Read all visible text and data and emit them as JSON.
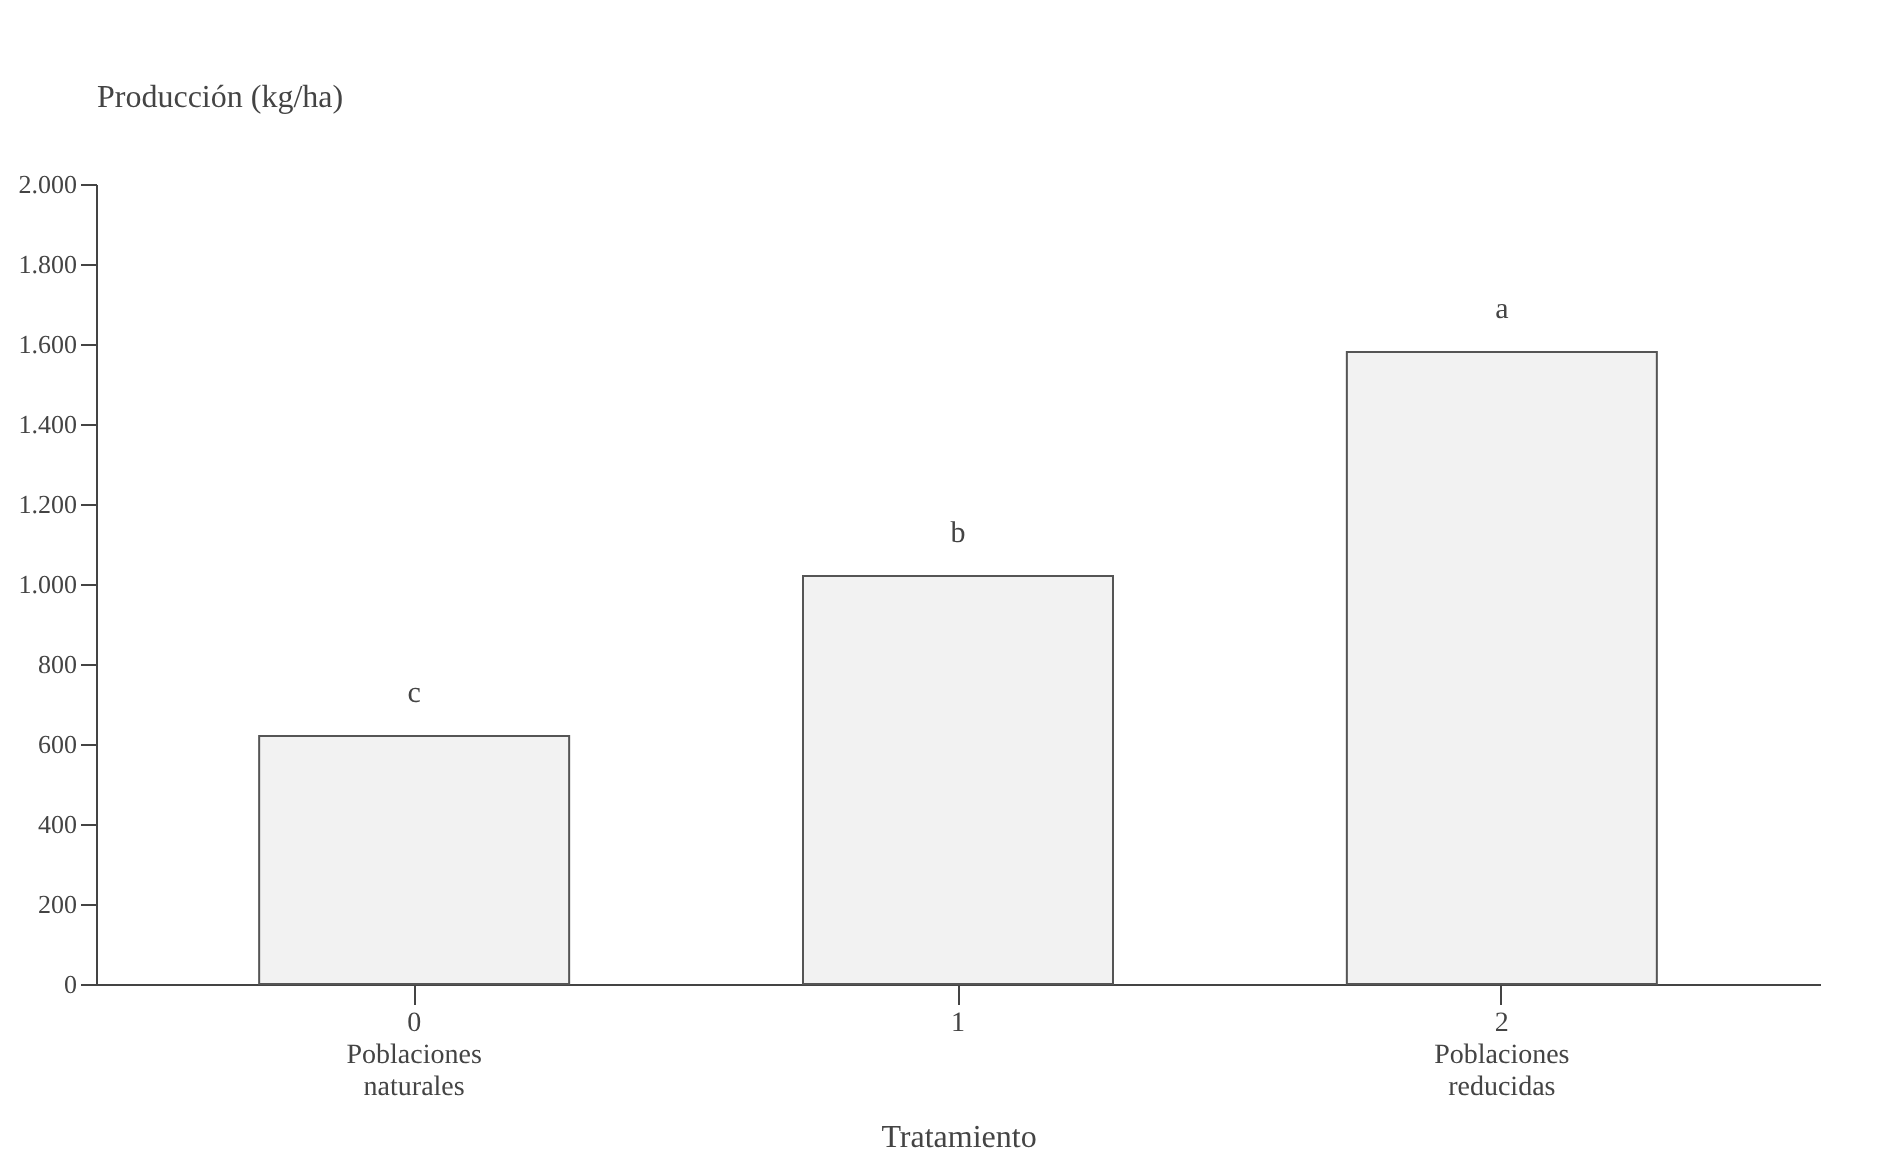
{
  "chart_data": {
    "type": "bar",
    "ylabel": "Producción (kg/ha)",
    "xlabel": "Tratamiento",
    "categories": [
      "0 Poblaciones naturales",
      "1",
      "2 Poblaciones reducidas"
    ],
    "values": [
      620,
      1020,
      1580
    ],
    "color": "#f2f2f2",
    "ylim": [
      0,
      2000
    ],
    "yticks": [
      {
        "value": 0,
        "label": "0"
      },
      {
        "value": 200,
        "label": "200"
      },
      {
        "value": 400,
        "label": "400"
      },
      {
        "value": 600,
        "label": "600"
      },
      {
        "value": 800,
        "label": "800"
      },
      {
        "value": 1000,
        "label": "1.000"
      },
      {
        "value": 1200,
        "label": "1.200"
      },
      {
        "value": 1400,
        "label": "1.400"
      },
      {
        "value": 1600,
        "label": "1.600"
      },
      {
        "value": 1800,
        "label": "1.800"
      },
      {
        "value": 2000,
        "label": "2.000"
      }
    ],
    "annotations": [
      {
        "text": "c",
        "x": "0 Poblaciones naturales",
        "y": 620
      },
      {
        "text": "b",
        "x": "1",
        "y": 1020
      },
      {
        "text": "a",
        "x": "2 Poblaciones reducidas",
        "y": 1580
      }
    ],
    "grid": false
  }
}
